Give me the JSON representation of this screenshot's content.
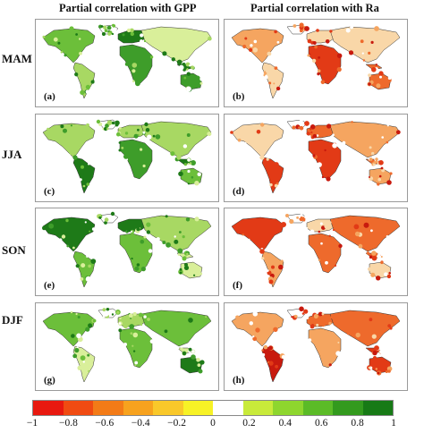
{
  "columns": [
    {
      "title": "Partial correlation with GPP",
      "palette": "green"
    },
    {
      "title": "Partial correlation with Ra",
      "palette": "red"
    }
  ],
  "rows": [
    {
      "season": "MAM",
      "labels": [
        "(a)",
        "(b)"
      ]
    },
    {
      "season": "JJA",
      "labels": [
        "(c)",
        "(d)"
      ]
    },
    {
      "season": "SON",
      "labels": [
        "(e)",
        "(f)"
      ]
    },
    {
      "season": "DJF",
      "labels": [
        "(g)",
        "(h)"
      ]
    }
  ],
  "colorbar": {
    "colors": [
      "#e8190f",
      "#f04b12",
      "#f37b17",
      "#f7a21e",
      "#f9c82a",
      "#f7f226",
      "#ffffff",
      "#c8ea3a",
      "#8ed62e",
      "#5bbb27",
      "#339a1e",
      "#177a16"
    ],
    "ticks": [
      "−1",
      "−0.8",
      "−0.6",
      "−0.4",
      "−0.2",
      "0",
      "0.2",
      "0.4",
      "0.6",
      "0.8",
      "1"
    ]
  },
  "map_colors": {
    "green": [
      "#ffffff",
      "#d9ef9a",
      "#a8d863",
      "#6cbf3a",
      "#3e9d2a",
      "#1e7a18"
    ],
    "red": [
      "#ffffff",
      "#f9d7a8",
      "#f5a560",
      "#ee6a2c",
      "#e23a16",
      "#c81a0e"
    ]
  }
}
